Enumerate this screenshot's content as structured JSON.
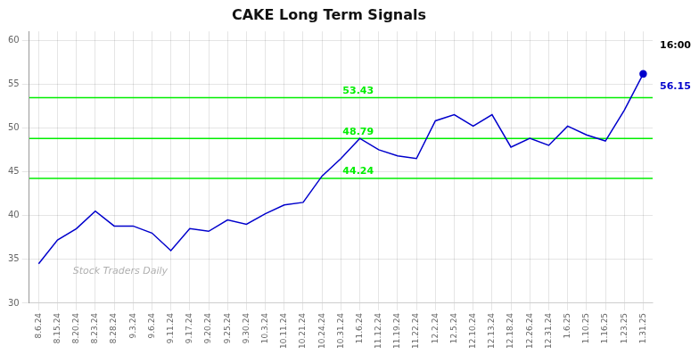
{
  "chart_data": {
    "type": "line",
    "title": "CAKE Long Term Signals",
    "categories": [
      "8.6.24",
      "8.15.24",
      "8.20.24",
      "8.23.24",
      "8.28.24",
      "9.3.24",
      "9.6.24",
      "9.11.24",
      "9.17.24",
      "9.20.24",
      "9.25.24",
      "9.30.24",
      "10.3.24",
      "10.11.24",
      "10.21.24",
      "10.24.24",
      "10.31.24",
      "11.6.24",
      "11.12.24",
      "11.19.24",
      "11.22.24",
      "12.2.24",
      "12.5.24",
      "12.10.24",
      "12.13.24",
      "12.18.24",
      "12.26.24",
      "12.31.24",
      "1.6.25",
      "1.10.25",
      "1.16.25",
      "1.23.25",
      "1.31.25"
    ],
    "values": [
      34.5,
      37.2,
      38.5,
      40.5,
      38.8,
      38.8,
      38.0,
      36.0,
      38.5,
      38.2,
      39.5,
      39.0,
      40.2,
      41.2,
      41.5,
      44.5,
      46.5,
      48.79,
      47.5,
      46.8,
      46.5,
      50.8,
      51.5,
      50.2,
      51.5,
      47.8,
      48.8,
      48.0,
      50.2,
      49.2,
      48.5,
      52.0,
      56.15
    ],
    "color": "#0000cc",
    "ylim": [
      30,
      61
    ],
    "yticks": [
      30,
      35,
      40,
      45,
      50,
      55,
      60
    ],
    "grid": true,
    "hlines": [
      {
        "value": 44.24,
        "label": "44.24",
        "color": "#00ee00"
      },
      {
        "value": 48.79,
        "label": "48.79",
        "color": "#00ee00"
      },
      {
        "value": 53.43,
        "label": "53.43",
        "color": "#00ee00"
      }
    ],
    "annotations": [
      {
        "text": "16:00",
        "color": "#000000"
      },
      {
        "text": "56.15",
        "color": "#0000cc"
      }
    ],
    "watermark": "Stock Traders Daily"
  }
}
